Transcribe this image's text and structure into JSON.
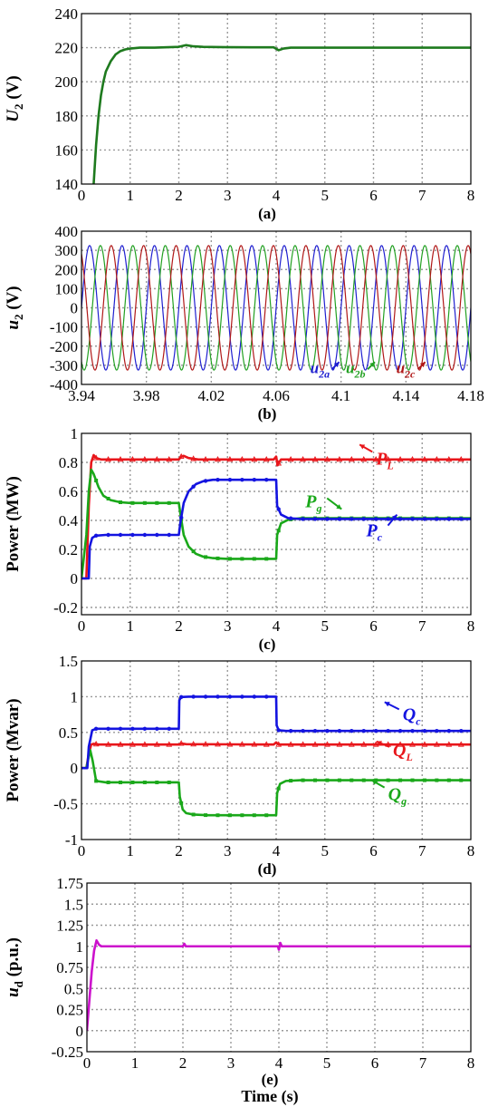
{
  "colors": {
    "red": "#e8161b",
    "green": "#1aa81a",
    "blue": "#1414e0",
    "darkgreen": "#1e7a1e",
    "phase_a": "#2020d0",
    "phase_b": "#22a022",
    "phase_c": "#b01818",
    "magenta": "#cc11cc"
  },
  "chart_data": [
    {
      "id": "a",
      "type": "line",
      "caption": "(a)",
      "ylabel_main": "U",
      "ylabel_sub": "2",
      "ylabel_unit": " (V)",
      "xlim": [
        0,
        8
      ],
      "ylim": [
        140,
        240
      ],
      "xticks": [
        "0",
        "1",
        "2",
        "3",
        "4",
        "5",
        "6",
        "7",
        "8"
      ],
      "yticks": [
        "140",
        "160",
        "180",
        "200",
        "220",
        "240"
      ],
      "grid": true,
      "series": [
        {
          "color": "darkgreen",
          "x": [
            0.25,
            0.3,
            0.35,
            0.4,
            0.45,
            0.5,
            0.6,
            0.7,
            0.8,
            0.9,
            1.0,
            1.2,
            1.5,
            2.0,
            2.15,
            2.3,
            2.5,
            3.0,
            3.5,
            3.95,
            4.05,
            4.15,
            4.3,
            5.0,
            6.0,
            7.0,
            8.0
          ],
          "y": [
            140,
            163,
            180,
            192,
            200,
            206,
            212,
            216,
            218,
            219,
            219.5,
            220,
            220,
            220.5,
            221.5,
            220.8,
            220.5,
            220.3,
            220.2,
            220.2,
            218.5,
            219.5,
            220,
            220,
            220,
            220,
            220
          ]
        }
      ]
    },
    {
      "id": "b",
      "type": "line",
      "caption": "(b)",
      "ylabel_main": "u",
      "ylabel_sub": "2",
      "ylabel_unit": " (V)",
      "xlim": [
        3.94,
        4.18
      ],
      "ylim": [
        -400,
        400
      ],
      "xticks": [
        "3.94",
        "3.98",
        "4.02",
        "4.06",
        "4.1",
        "4.14",
        "4.18"
      ],
      "yticks": [
        "-400",
        "-300",
        "-200",
        "-100",
        "0",
        "100",
        "200",
        "300",
        "400"
      ],
      "grid": true,
      "frequency_hz": 50,
      "amplitude_v": 325,
      "series": [
        {
          "name": "u2a",
          "color": "phase_a",
          "phase_deg": 0
        },
        {
          "name": "u2b",
          "color": "phase_b",
          "phase_deg": -120
        },
        {
          "name": "u2c",
          "color": "phase_c",
          "phase_deg": 120
        }
      ],
      "labels": [
        {
          "main": "u",
          "sub": "2a",
          "color": "phase_a",
          "x": 4.081,
          "y": -340
        },
        {
          "main": "u",
          "sub": "2b",
          "color": "phase_b",
          "x": 4.103,
          "y": -340
        },
        {
          "main": "u",
          "sub": "2c",
          "color": "phase_c",
          "x": 4.134,
          "y": -340
        }
      ]
    },
    {
      "id": "c",
      "type": "line",
      "caption": "(c)",
      "ylabel_main": "Power (MW)",
      "xlim": [
        0,
        8
      ],
      "ylim": [
        -0.25,
        1
      ],
      "xticks": [
        "0",
        "1",
        "2",
        "3",
        "4",
        "5",
        "6",
        "7",
        "8"
      ],
      "yticks": [
        "-0.2",
        "0",
        "0.2",
        "0.4",
        "0.6",
        "0.8",
        "1"
      ],
      "grid": true,
      "series": [
        {
          "name": "PL",
          "color": "red",
          "marker": "triangle",
          "x": [
            0,
            0.1,
            0.15,
            0.2,
            0.25,
            0.3,
            0.4,
            2.0,
            2.05,
            2.1,
            2.2,
            2.4,
            3.95,
            4.0,
            4.03,
            4.06,
            4.1,
            4.2,
            8.0
          ],
          "y": [
            0,
            0,
            0.5,
            0.8,
            0.85,
            0.83,
            0.82,
            0.82,
            0.84,
            0.845,
            0.83,
            0.82,
            0.82,
            0.84,
            0.78,
            0.8,
            0.82,
            0.82,
            0.82
          ]
        },
        {
          "name": "Pg",
          "color": "green",
          "marker": "square",
          "x": [
            0,
            0.1,
            0.15,
            0.2,
            0.25,
            0.35,
            0.45,
            0.6,
            0.8,
            1.0,
            2.0,
            2.03,
            2.1,
            2.2,
            2.35,
            2.5,
            2.7,
            3.0,
            4.0,
            4.02,
            4.1,
            4.25,
            4.5,
            5.0,
            8.0
          ],
          "y": [
            0,
            0.3,
            0.6,
            0.75,
            0.72,
            0.63,
            0.57,
            0.54,
            0.525,
            0.52,
            0.52,
            0.45,
            0.3,
            0.22,
            0.17,
            0.15,
            0.14,
            0.135,
            0.135,
            0.3,
            0.38,
            0.405,
            0.415,
            0.415,
            0.415
          ]
        },
        {
          "name": "Pc",
          "color": "blue",
          "marker": "circle",
          "x": [
            0,
            0.15,
            0.17,
            0.22,
            0.3,
            0.5,
            1.0,
            2.0,
            2.03,
            2.1,
            2.2,
            2.35,
            2.5,
            2.7,
            3.0,
            4.0,
            4.02,
            4.1,
            4.25,
            4.5,
            5.0,
            8.0
          ],
          "y": [
            0,
            0,
            0.22,
            0.28,
            0.295,
            0.3,
            0.3,
            0.3,
            0.38,
            0.52,
            0.6,
            0.65,
            0.67,
            0.68,
            0.68,
            0.68,
            0.5,
            0.44,
            0.415,
            0.41,
            0.41,
            0.41
          ]
        }
      ],
      "labels": [
        {
          "main": "P",
          "sub": "L",
          "color": "red",
          "x": 6.05,
          "y": 0.785
        },
        {
          "main": "P",
          "sub": "g",
          "color": "green",
          "x": 4.6,
          "y": 0.49
        },
        {
          "main": "P",
          "sub": "c",
          "color": "blue",
          "x": 5.85,
          "y": 0.29
        }
      ]
    },
    {
      "id": "d",
      "type": "line",
      "caption": "(d)",
      "ylabel_main": "Power (Mvar)",
      "xlim": [
        0,
        8
      ],
      "ylim": [
        -1,
        1.5
      ],
      "xticks": [
        "0",
        "1",
        "2",
        "3",
        "4",
        "5",
        "6",
        "7",
        "8"
      ],
      "yticks": [
        "-1",
        "-0.5",
        "0",
        "0.5",
        "1",
        "1.5"
      ],
      "grid": true,
      "series": [
        {
          "name": "QL",
          "color": "red",
          "marker": "triangle",
          "x": [
            0,
            0.1,
            0.15,
            0.2,
            0.25,
            0.35,
            2.0,
            2.05,
            2.15,
            3.95,
            4.0,
            4.05,
            4.15,
            8.0
          ],
          "y": [
            0,
            0,
            0.2,
            0.33,
            0.34,
            0.33,
            0.33,
            0.345,
            0.335,
            0.33,
            0.36,
            0.33,
            0.33,
            0.33
          ]
        },
        {
          "name": "Qg",
          "color": "green",
          "marker": "square",
          "x": [
            0,
            0.1,
            0.13,
            0.18,
            0.23,
            0.3,
            0.5,
            2.0,
            2.02,
            2.08,
            2.15,
            2.3,
            2.6,
            4.0,
            4.02,
            4.08,
            4.2,
            4.5,
            8.0
          ],
          "y": [
            0,
            0,
            0.1,
            0.25,
            0.1,
            -0.18,
            -0.2,
            -0.2,
            -0.4,
            -0.58,
            -0.63,
            -0.65,
            -0.66,
            -0.66,
            -0.35,
            -0.22,
            -0.18,
            -0.17,
            -0.17
          ]
        },
        {
          "name": "Qc",
          "color": "blue",
          "marker": "circle",
          "x": [
            0,
            0.12,
            0.15,
            0.22,
            0.3,
            0.5,
            2.0,
            2.01,
            2.05,
            2.2,
            3.0,
            4.0,
            4.01,
            4.05,
            4.2,
            5.0,
            8.0
          ],
          "y": [
            0,
            0,
            0.3,
            0.53,
            0.55,
            0.55,
            0.55,
            0.95,
            0.995,
            1.0,
            1.0,
            1.0,
            0.6,
            0.53,
            0.52,
            0.52,
            0.52
          ]
        }
      ],
      "labels": [
        {
          "main": "Q",
          "sub": "c",
          "color": "blue",
          "x": 6.6,
          "y": 0.67
        },
        {
          "main": "Q",
          "sub": "L",
          "color": "red",
          "x": 6.4,
          "y": 0.17
        },
        {
          "main": "Q",
          "sub": "g",
          "color": "green",
          "x": 6.3,
          "y": -0.45
        }
      ]
    },
    {
      "id": "e",
      "type": "line",
      "caption": "(e)",
      "xlabel": "Time (s)",
      "ylabel_main": "u",
      "ylabel_sub": "d",
      "ylabel_unit": " (p.u.)",
      "xlim": [
        0,
        8
      ],
      "ylim": [
        -0.25,
        1.75
      ],
      "xticks": [
        "0",
        "1",
        "2",
        "3",
        "4",
        "5",
        "6",
        "7",
        "8"
      ],
      "yticks": [
        "-0.25",
        "0",
        "0.25",
        "0.5",
        "0.75",
        "1",
        "1.25",
        "1.5",
        "1.75"
      ],
      "grid": true,
      "series": [
        {
          "color": "magenta",
          "x": [
            0,
            0.05,
            0.1,
            0.15,
            0.2,
            0.25,
            0.3,
            0.4,
            2.0,
            2.03,
            2.06,
            3.98,
            4.0,
            4.03,
            4.06,
            8.0
          ],
          "y": [
            0,
            0.35,
            0.7,
            0.95,
            1.07,
            1.02,
            1.0,
            1.0,
            1.0,
            1.03,
            1.0,
            1.0,
            0.96,
            1.04,
            1.0,
            1.0
          ]
        }
      ]
    }
  ]
}
